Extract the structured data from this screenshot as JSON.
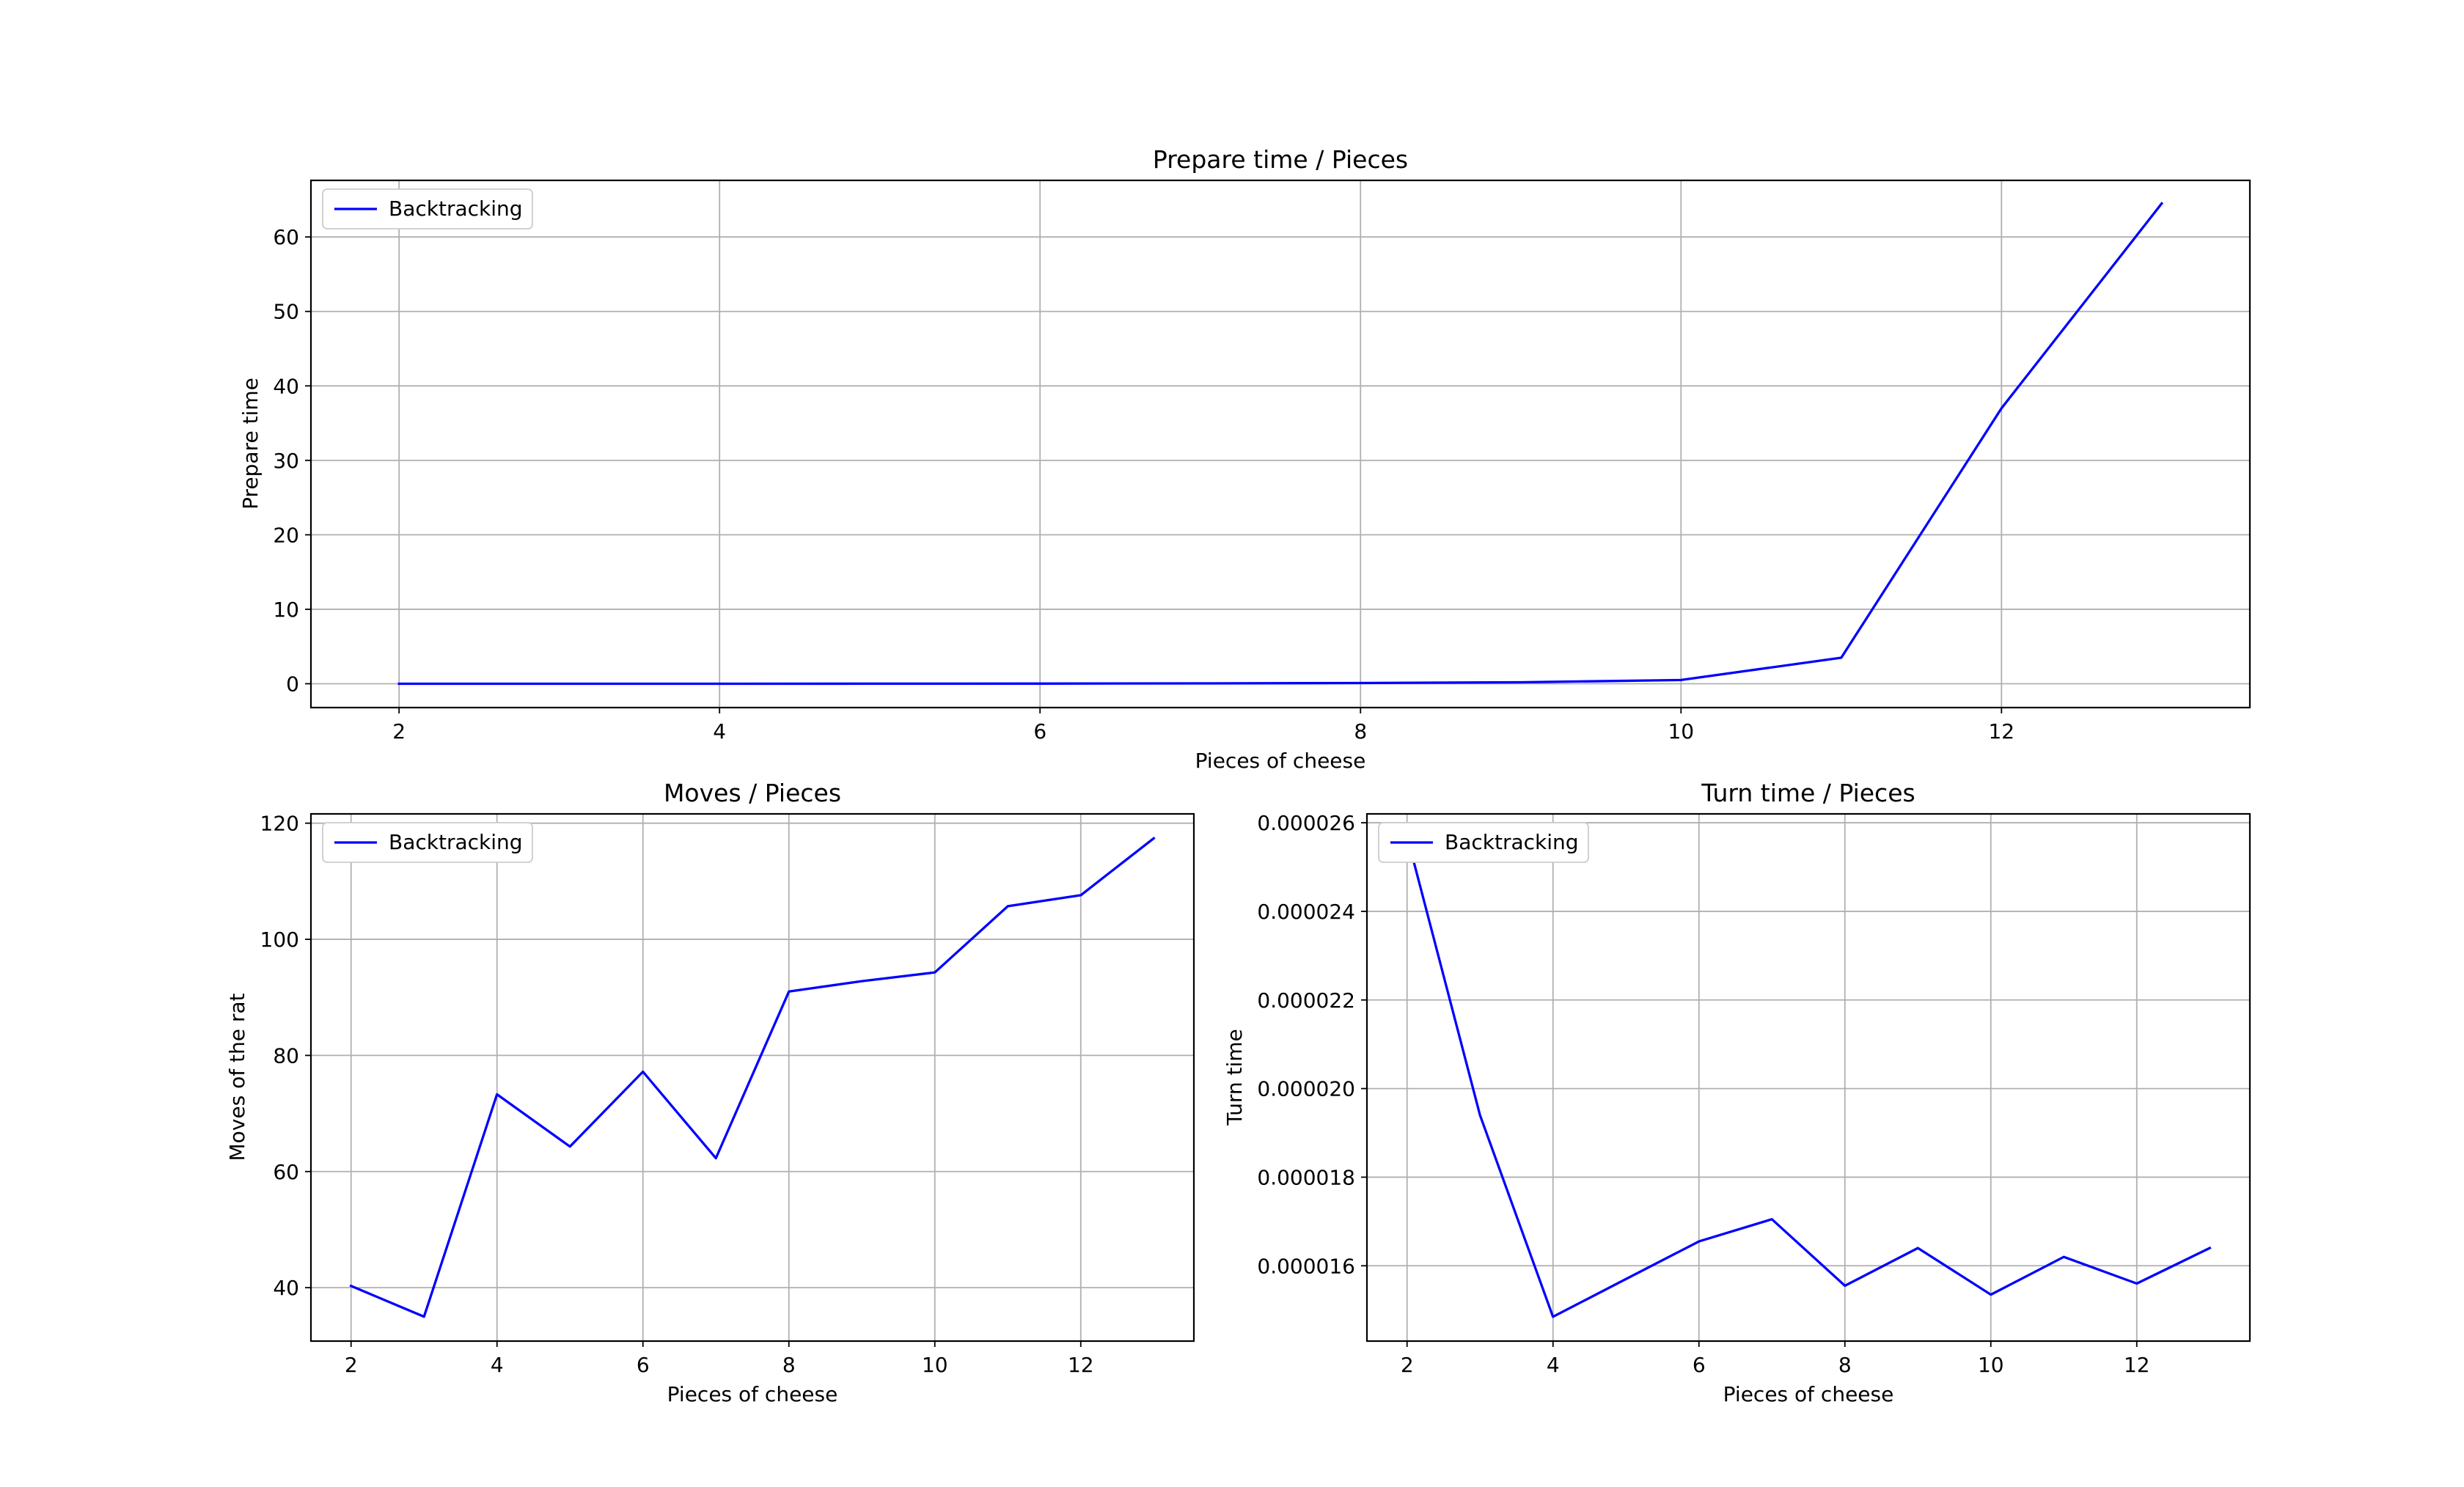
{
  "chart_data": [
    {
      "id": "prepare",
      "type": "line",
      "title": "Prepare time / Pieces",
      "xlabel": "Pieces of cheese",
      "ylabel": "Prepare time",
      "xlim": [
        1.45,
        13.55
      ],
      "ylim": [
        -3.2,
        67.6
      ],
      "xticks": [
        2,
        4,
        6,
        8,
        10,
        12
      ],
      "yticks": [
        0,
        10,
        20,
        30,
        40,
        50,
        60
      ],
      "xtick_labels": [
        "2",
        "4",
        "6",
        "8",
        "10",
        "12"
      ],
      "ytick_labels": [
        "0",
        "10",
        "20",
        "30",
        "40",
        "50",
        "60"
      ],
      "grid": true,
      "legend_position": "top-left",
      "x": [
        2,
        3,
        4,
        5,
        6,
        7,
        8,
        9,
        10,
        11,
        12,
        13
      ],
      "series": [
        {
          "name": "Backtracking",
          "color": "#0000ff",
          "values": [
            0.0,
            0.0,
            0.0,
            0.01,
            0.02,
            0.05,
            0.1,
            0.2,
            0.5,
            3.5,
            37.0,
            64.5
          ]
        }
      ]
    },
    {
      "id": "moves",
      "type": "line",
      "title": "Moves / Pieces",
      "xlabel": "Pieces of cheese",
      "ylabel": "Moves of the rat",
      "xlim": [
        1.45,
        13.55
      ],
      "ylim": [
        30.8,
        121.6
      ],
      "xticks": [
        2,
        4,
        6,
        8,
        10,
        12
      ],
      "yticks": [
        40,
        60,
        80,
        100,
        120
      ],
      "xtick_labels": [
        "2",
        "4",
        "6",
        "8",
        "10",
        "12"
      ],
      "ytick_labels": [
        "40",
        "60",
        "80",
        "100",
        "120"
      ],
      "grid": true,
      "legend_position": "top-left",
      "x": [
        2,
        3,
        4,
        5,
        6,
        7,
        8,
        9,
        10,
        11,
        12,
        13
      ],
      "series": [
        {
          "name": "Backtracking",
          "color": "#0000ff",
          "values": [
            40.3,
            35.0,
            73.3,
            64.3,
            77.2,
            62.3,
            91.0,
            92.8,
            94.3,
            105.7,
            107.6,
            117.4
          ]
        }
      ]
    },
    {
      "id": "turn",
      "type": "line",
      "title": "Turn time / Pieces",
      "xlabel": "Pieces of cheese",
      "ylabel": "Turn time",
      "xlim": [
        1.45,
        13.55
      ],
      "ylim": [
        1.43e-05,
        2.62e-05
      ],
      "xticks": [
        2,
        4,
        6,
        8,
        10,
        12
      ],
      "yticks": [
        1.6e-05,
        1.8e-05,
        2e-05,
        2.2e-05,
        2.4e-05,
        2.6e-05
      ],
      "xtick_labels": [
        "2",
        "4",
        "6",
        "8",
        "10",
        "12"
      ],
      "ytick_labels": [
        "0.000016",
        "0.000018",
        "0.000020",
        "0.000022",
        "0.000024",
        "0.000026"
      ],
      "grid": true,
      "legend_position": "top-left",
      "x": [
        2,
        3,
        4,
        5,
        6,
        7,
        8,
        9,
        10,
        11,
        12,
        13
      ],
      "series": [
        {
          "name": "Backtracking",
          "color": "#0000ff",
          "values": [
            2.57e-05,
            1.94e-05,
            1.485e-05,
            1.57e-05,
            1.655e-05,
            1.705e-05,
            1.555e-05,
            1.64e-05,
            1.535e-05,
            1.62e-05,
            1.56e-05,
            1.64e-05
          ]
        }
      ]
    }
  ]
}
